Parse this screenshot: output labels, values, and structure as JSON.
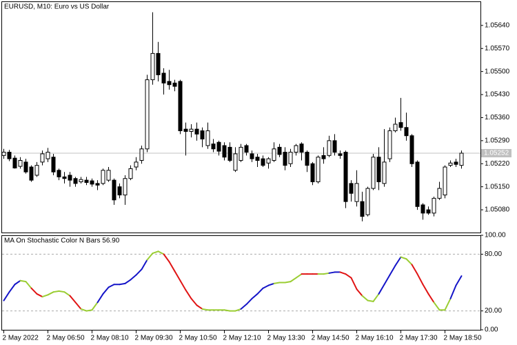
{
  "chart_data": [
    {
      "type": "candlestick",
      "title": "EURUSD, M10:  Euro vs US Dollar",
      "open": [
        1.05245,
        1.05255,
        1.05237,
        1.05212,
        1.05225,
        1.0521,
        1.05185,
        1.05225,
        1.05235,
        1.0524,
        1.052,
        1.0518,
        1.05185,
        1.05175,
        1.05165,
        1.0517,
        1.05168,
        1.0516,
        1.0516,
        1.0517,
        1.0517,
        1.0515,
        1.05125,
        1.05175,
        1.0521,
        1.0523,
        1.05265,
        1.05475,
        1.05555,
        1.05495,
        1.0547,
        1.05465,
        1.0547,
        1.05325,
        1.05318,
        1.05325,
        1.0532,
        1.05275,
        1.0528,
        1.05285,
        1.05275,
        1.0527,
        1.052,
        1.0523,
        1.05275,
        1.0525,
        1.0524,
        1.05235,
        1.05222,
        1.0523,
        1.0527,
        1.05255,
        1.0522,
        1.05255,
        1.0528,
        1.05255,
        1.0522,
        1.05165,
        1.05245,
        1.05245,
        1.0529,
        1.0525,
        1.05255,
        1.0516,
        1.05105,
        1.05105,
        1.05065,
        1.05145,
        1.0524,
        1.0516,
        1.05235,
        1.0532,
        1.05345,
        1.0533,
        1.05305,
        1.05225,
        1.05095,
        1.0508,
        1.0507,
        1.05115,
        1.05125,
        1.05215,
        1.05225,
        1.05215
      ],
      "high": [
        1.05265,
        1.05262,
        1.05245,
        1.0524,
        1.05235,
        1.05215,
        1.05225,
        1.0526,
        1.05268,
        1.0525,
        1.05205,
        1.05195,
        1.05195,
        1.0518,
        1.0518,
        1.0518,
        1.05175,
        1.0517,
        1.05205,
        1.0521,
        1.05175,
        1.0516,
        1.05185,
        1.05215,
        1.0524,
        1.05275,
        1.0549,
        1.0568,
        1.0559,
        1.0551,
        1.05505,
        1.05475,
        1.05475,
        1.05345,
        1.0534,
        1.05345,
        1.0533,
        1.05345,
        1.05295,
        1.0529,
        1.05285,
        1.05285,
        1.0527,
        1.0528,
        1.0528,
        1.0526,
        1.0525,
        1.05245,
        1.0524,
        1.05285,
        1.0528,
        1.0527,
        1.05265,
        1.0528,
        1.05285,
        1.0526,
        1.05225,
        1.05245,
        1.0527,
        1.05305,
        1.0531,
        1.0526,
        1.0526,
        1.0517,
        1.052,
        1.05135,
        1.0515,
        1.0525,
        1.0527,
        1.05325,
        1.0533,
        1.0536,
        1.0542,
        1.05375,
        1.0531,
        1.0523,
        1.051,
        1.0509,
        1.0512,
        1.05165,
        1.05215,
        1.0523,
        1.05235,
        1.0526
      ],
      "low": [
        1.05235,
        1.05228,
        1.05205,
        1.05205,
        1.0519,
        1.05165,
        1.0518,
        1.05215,
        1.05225,
        1.05185,
        1.0517,
        1.0516,
        1.0515,
        1.0515,
        1.0516,
        1.05155,
        1.0515,
        1.0514,
        1.05155,
        1.05165,
        1.05095,
        1.05115,
        1.05095,
        1.0517,
        1.052,
        1.0522,
        1.05255,
        1.0546,
        1.0547,
        1.0543,
        1.05445,
        1.0544,
        1.0531,
        1.05245,
        1.053,
        1.0529,
        1.0527,
        1.05265,
        1.05255,
        1.05245,
        1.0523,
        1.05225,
        1.05195,
        1.05225,
        1.05245,
        1.05225,
        1.0521,
        1.0521,
        1.05205,
        1.05225,
        1.0524,
        1.052,
        1.0521,
        1.05245,
        1.0523,
        1.05195,
        1.05155,
        1.0516,
        1.0522,
        1.0524,
        1.05245,
        1.05235,
        1.05085,
        1.05105,
        1.0509,
        1.05045,
        1.0506,
        1.0514,
        1.0514,
        1.0515,
        1.05225,
        1.05315,
        1.0532,
        1.0529,
        1.0521,
        1.0508,
        1.0505,
        1.05065,
        1.0506,
        1.0511,
        1.05115,
        1.0521,
        1.0521,
        1.05205
      ],
      "close": [
        1.05255,
        1.05235,
        1.05207,
        1.0523,
        1.05195,
        1.0517,
        1.05215,
        1.0525,
        1.05255,
        1.05195,
        1.0518,
        1.05175,
        1.0517,
        1.0516,
        1.05172,
        1.05163,
        1.05158,
        1.05155,
        1.052,
        1.052,
        1.0511,
        1.05125,
        1.05175,
        1.05205,
        1.05225,
        1.05265,
        1.05475,
        1.05555,
        1.0549,
        1.05465,
        1.0546,
        1.05455,
        1.0532,
        1.05318,
        1.05325,
        1.0531,
        1.05295,
        1.0532,
        1.05265,
        1.05258,
        1.0524,
        1.0523,
        1.0525,
        1.0527,
        1.05255,
        1.05235,
        1.0523,
        1.05215,
        1.05235,
        1.05265,
        1.05248,
        1.05215,
        1.05255,
        1.05275,
        1.05255,
        1.05215,
        1.05165,
        1.0524,
        1.05235,
        1.0529,
        1.05255,
        1.05245,
        1.05105,
        1.0513,
        1.0516,
        1.0506,
        1.05145,
        1.0524,
        1.05165,
        1.05225,
        1.0532,
        1.0534,
        1.0533,
        1.05305,
        1.0522,
        1.0509,
        1.0507,
        1.0507,
        1.05115,
        1.05145,
        1.0521,
        1.05222,
        1.05218,
        1.05252
      ],
      "up_color": "#ffffff",
      "down_color": "#000000",
      "current_price": 1.05252,
      "ylim": [
        1.05011,
        1.05713
      ],
      "yticks": [
        {
          "value": 1.0564,
          "label": "1.05640"
        },
        {
          "value": 1.0557,
          "label": "1.05570"
        },
        {
          "value": 1.055,
          "label": "1.05500"
        },
        {
          "value": 1.0543,
          "label": "1.05430"
        },
        {
          "value": 1.0536,
          "label": "1.05360"
        },
        {
          "value": 1.0529,
          "label": "1.05290"
        },
        {
          "value": 1.0522,
          "label": "1.05220"
        },
        {
          "value": 1.0515,
          "label": "1.05150"
        },
        {
          "value": 1.0508,
          "label": "1.05080"
        }
      ],
      "xticks": [
        {
          "value": 0,
          "label": "2 May 2022"
        },
        {
          "value": 8,
          "label": "2 May 06:50"
        },
        {
          "value": 16,
          "label": "2 May 08:10"
        },
        {
          "value": 24,
          "label": "2 May 09:30"
        },
        {
          "value": 32,
          "label": "2 May 10:50"
        },
        {
          "value": 40,
          "label": "2 May 12:10"
        },
        {
          "value": 48,
          "label": "2 May 13:30"
        },
        {
          "value": 56,
          "label": "2 May 14:50"
        },
        {
          "value": 64,
          "label": "2 May 16:10"
        },
        {
          "value": 72,
          "label": "2 May 17:30"
        },
        {
          "value": 80,
          "label": "2 May 18:50"
        }
      ]
    },
    {
      "type": "line",
      "title": "MA On Stochastic Color N Bars 56.90",
      "values": [
        31,
        40,
        48,
        52,
        51,
        44,
        38,
        35,
        37,
        40,
        41,
        40,
        36,
        29,
        22,
        20,
        21,
        29,
        38,
        45,
        48,
        48,
        49,
        53,
        58,
        64,
        74,
        81,
        83,
        80,
        72,
        62,
        52,
        42,
        33,
        26,
        22,
        21,
        21,
        21,
        21,
        20,
        20,
        22,
        27,
        33,
        38,
        44,
        47,
        49,
        50,
        50,
        51,
        55,
        59,
        59,
        59,
        59,
        59,
        60,
        61,
        61,
        59,
        55,
        43,
        36,
        31,
        30,
        38,
        48,
        58,
        68,
        77,
        75,
        69,
        59,
        48,
        38,
        29,
        21,
        21,
        33,
        47,
        56.9
      ],
      "palette": [
        "#1414c8",
        "#e01414",
        "#9acd32"
      ],
      "color_index": [
        0,
        0,
        0,
        0,
        2,
        2,
        1,
        1,
        2,
        2,
        2,
        2,
        2,
        1,
        1,
        2,
        2,
        2,
        0,
        0,
        0,
        0,
        0,
        0,
        0,
        0,
        0,
        2,
        2,
        2,
        1,
        1,
        1,
        1,
        1,
        1,
        1,
        2,
        2,
        2,
        2,
        2,
        2,
        2,
        0,
        0,
        0,
        0,
        0,
        0,
        2,
        2,
        2,
        2,
        2,
        1,
        1,
        1,
        2,
        2,
        0,
        0,
        1,
        1,
        1,
        1,
        2,
        2,
        2,
        0,
        0,
        0,
        0,
        2,
        2,
        1,
        1,
        1,
        1,
        2,
        2,
        2,
        0,
        0
      ],
      "ylim": [
        0,
        100
      ],
      "yticks": [
        {
          "value": 100,
          "label": "100.00"
        },
        {
          "value": 80,
          "label": "80.00"
        },
        {
          "value": 20,
          "label": "20.00"
        },
        {
          "value": 0,
          "label": "0.00"
        }
      ],
      "levels": [
        80,
        20
      ]
    }
  ]
}
